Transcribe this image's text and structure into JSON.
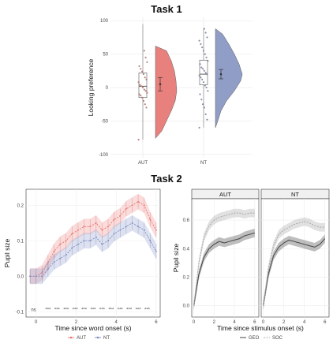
{
  "task1": {
    "title": "Task 1",
    "ylabel": "Looking preference",
    "yticks": [
      100,
      50,
      0,
      -50,
      -100
    ],
    "ylim": [
      -105,
      105
    ],
    "groups": [
      "AUT",
      "NT"
    ],
    "colors": {
      "AUT": "#e77b78",
      "NT": "#8b98c4"
    },
    "box": [
      {
        "group": "AUT",
        "q1": -15,
        "median": 2,
        "q3": 22,
        "whisker_low": -78,
        "whisker_high": 95,
        "mean": 5,
        "se_low": -5,
        "se_high": 15
      },
      {
        "group": "NT",
        "q1": 4,
        "median": 20,
        "q3": 41,
        "whisker_low": -60,
        "whisker_high": 88,
        "mean": 20,
        "se_low": 13,
        "se_high": 27
      }
    ],
    "points": {
      "AUT": [
        -78,
        -30,
        -25,
        -20,
        -15,
        -12,
        -10,
        -8,
        -5,
        -3,
        0,
        2,
        4,
        8,
        12,
        15,
        20,
        24,
        28,
        32,
        38,
        45,
        55
      ],
      "NT": [
        -60,
        -48,
        -40,
        -30,
        -25,
        -18,
        -10,
        -5,
        0,
        3,
        8,
        12,
        15,
        18,
        20,
        22,
        25,
        28,
        30,
        35,
        40,
        45,
        50,
        55,
        60,
        65,
        70,
        75,
        82,
        88
      ]
    }
  },
  "task2": {
    "title": "Task 2",
    "left": {
      "xlabel": "Time since word onset (s)",
      "ylabel": "Pupil size",
      "xticks": [
        0,
        2,
        4,
        6
      ],
      "yticks": [
        0.2,
        0.1,
        0.0,
        -0.1
      ],
      "xlim": [
        -0.5,
        6.2
      ],
      "ylim": [
        -0.115,
        0.245
      ],
      "sig_label": "ns",
      "sig_marks": [
        "***",
        "***",
        "***",
        "***",
        "***",
        "***",
        "***",
        "***",
        "***",
        "***",
        "***",
        "***"
      ],
      "legend": [
        "AUT",
        "NT"
      ],
      "series": [
        {
          "name": "AUT",
          "color": "#e8756f",
          "x": [
            -0.3,
            0,
            0.3,
            0.6,
            0.9,
            1.2,
            1.5,
            1.8,
            2.1,
            2.4,
            2.7,
            3.0,
            3.3,
            3.6,
            3.9,
            4.2,
            4.5,
            4.8,
            5.1,
            5.4,
            5.7,
            6.0
          ],
          "y": [
            0.0,
            0.0,
            0.01,
            0.04,
            0.07,
            0.09,
            0.1,
            0.12,
            0.13,
            0.14,
            0.14,
            0.15,
            0.13,
            0.14,
            0.16,
            0.17,
            0.19,
            0.2,
            0.21,
            0.2,
            0.16,
            0.13
          ]
        },
        {
          "name": "NT",
          "color": "#7c8cc2",
          "x": [
            -0.3,
            0,
            0.3,
            0.6,
            0.9,
            1.2,
            1.5,
            1.8,
            2.1,
            2.4,
            2.7,
            3.0,
            3.3,
            3.6,
            3.9,
            4.2,
            4.5,
            4.8,
            5.1,
            5.4,
            5.7,
            6.0
          ],
          "y": [
            0.0,
            0.0,
            0.0,
            0.02,
            0.04,
            0.05,
            0.06,
            0.08,
            0.09,
            0.1,
            0.1,
            0.11,
            0.09,
            0.1,
            0.12,
            0.13,
            0.14,
            0.15,
            0.14,
            0.13,
            0.1,
            0.07
          ]
        }
      ]
    },
    "right": {
      "xlabel": "Time since stimulus onset (s)",
      "ylabel": "Pupil size",
      "panels": [
        "AUT",
        "NT"
      ],
      "xticks": [
        0,
        2,
        4,
        6
      ],
      "yticks": [
        0.6,
        0.4,
        0.2,
        0.0
      ],
      "xlim": [
        -0.2,
        6.4
      ],
      "ylim": [
        -0.08,
        0.75
      ],
      "legend": [
        "GEO",
        "SOC"
      ],
      "series": [
        {
          "panel": "AUT",
          "name": "GEO",
          "color": "#444444",
          "x": [
            0,
            0.5,
            1,
            1.5,
            2,
            2.5,
            3,
            3.5,
            4,
            4.5,
            5,
            5.5,
            6
          ],
          "y": [
            0.0,
            0.22,
            0.34,
            0.4,
            0.43,
            0.45,
            0.44,
            0.45,
            0.46,
            0.47,
            0.49,
            0.5,
            0.51
          ]
        },
        {
          "panel": "AUT",
          "name": "SOC",
          "color": "#a8a8a8",
          "x": [
            0,
            0.5,
            1,
            1.5,
            2,
            2.5,
            3,
            3.5,
            4,
            4.5,
            5,
            5.5,
            6
          ],
          "y": [
            0.0,
            0.3,
            0.48,
            0.56,
            0.6,
            0.62,
            0.63,
            0.64,
            0.65,
            0.65,
            0.64,
            0.65,
            0.65
          ]
        },
        {
          "panel": "NT",
          "name": "GEO",
          "color": "#444444",
          "x": [
            0,
            0.5,
            1,
            1.5,
            2,
            2.5,
            3,
            3.5,
            4,
            4.5,
            5,
            5.5,
            6
          ],
          "y": [
            0.0,
            0.22,
            0.35,
            0.41,
            0.44,
            0.46,
            0.45,
            0.44,
            0.43,
            0.42,
            0.41,
            0.43,
            0.47
          ]
        },
        {
          "panel": "NT",
          "name": "SOC",
          "color": "#a8a8a8",
          "x": [
            0,
            0.5,
            1,
            1.5,
            2,
            2.5,
            3,
            3.5,
            4,
            4.5,
            5,
            5.5,
            6
          ],
          "y": [
            0.0,
            0.26,
            0.42,
            0.5,
            0.53,
            0.55,
            0.57,
            0.58,
            0.59,
            0.58,
            0.56,
            0.55,
            0.55
          ]
        }
      ]
    }
  }
}
